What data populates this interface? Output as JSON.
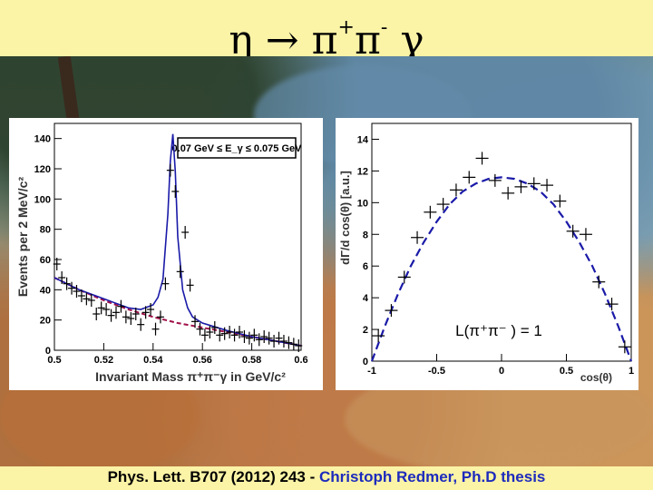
{
  "slide": {
    "title_eta": "η",
    "title_arrow": "→",
    "title_pi1": "π",
    "title_plus": "+",
    "title_pi2": "π",
    "title_minus": "-",
    "title_gamma": "γ",
    "footer_ref": "Phys. Lett.  B707 (2012)  243  -",
    "footer_author": "Christoph Redmer, Ph.D thesis"
  },
  "colors": {
    "title_band": "#fbf3a6",
    "fit_line": "#1a1aa8",
    "background_line": "#a0104a",
    "author_text": "#1d2bbd"
  },
  "chart_data": [
    {
      "type": "scatter",
      "ylabel": "Events per 2 MeV/c²",
      "xlabel": "Invariant Mass π⁺π⁻γ  in GeV/c²",
      "legend_box": "0.07 GeV ≤ E_γ ≤ 0.075 GeV",
      "legend_placement": "top-right",
      "xlim": [
        0.5,
        0.6
      ],
      "ylim": [
        0,
        150
      ],
      "x_ticks": [
        "0.5",
        "0.52",
        "0.54",
        "0.56",
        "0.58",
        "0.6"
      ],
      "y_ticks": [
        "0",
        "20",
        "40",
        "60",
        "80",
        "100",
        "120",
        "140"
      ],
      "series": [
        {
          "kind": "data_points",
          "x": [
            0.501,
            0.503,
            0.505,
            0.507,
            0.509,
            0.511,
            0.513,
            0.515,
            0.517,
            0.519,
            0.521,
            0.523,
            0.525,
            0.527,
            0.529,
            0.531,
            0.533,
            0.535,
            0.537,
            0.539,
            0.541,
            0.543,
            0.545,
            0.547,
            0.549,
            0.551,
            0.553,
            0.555,
            0.557,
            0.559,
            0.561,
            0.563,
            0.565,
            0.567,
            0.569,
            0.571,
            0.573,
            0.575,
            0.577,
            0.579,
            0.581,
            0.583,
            0.585,
            0.587,
            0.589,
            0.591,
            0.593,
            0.595,
            0.597,
            0.599
          ],
          "y": [
            57,
            48,
            44,
            41,
            39,
            36,
            34,
            33,
            24,
            28,
            27,
            23,
            25,
            29,
            22,
            21,
            24,
            17,
            25,
            27,
            14,
            22,
            44,
            119,
            105,
            52,
            78,
            43,
            19,
            14,
            10,
            12,
            15,
            10,
            11,
            12,
            10,
            12,
            9,
            8,
            10,
            7,
            9,
            8,
            6,
            8,
            6,
            5,
            4,
            3
          ]
        },
        {
          "kind": "signal_plus_background_fit",
          "x": [
            0.5,
            0.51,
            0.52,
            0.53,
            0.535,
            0.54,
            0.542,
            0.544,
            0.546,
            0.547,
            0.548,
            0.549,
            0.55,
            0.552,
            0.554,
            0.556,
            0.56,
            0.57,
            0.58,
            0.59,
            0.6
          ],
          "y": [
            48,
            40,
            34,
            28,
            27,
            30,
            35,
            47,
            90,
            125,
            143,
            118,
            75,
            40,
            28,
            22,
            18,
            13,
            9,
            6,
            3
          ]
        },
        {
          "kind": "background_fit",
          "x": [
            0.5,
            0.51,
            0.52,
            0.53,
            0.54,
            0.55,
            0.56,
            0.57,
            0.58,
            0.59,
            0.6
          ],
          "y": [
            48,
            40,
            33,
            27,
            22,
            18,
            15,
            12,
            9,
            6,
            3
          ]
        }
      ]
    },
    {
      "type": "scatter",
      "ylabel": "dΓ/d cos(θ)   [a.u.]",
      "xlabel": "cos(θ)",
      "annotation": "L(π⁺π⁻ ) = 1",
      "xlim": [
        -1,
        1
      ],
      "ylim": [
        0,
        15
      ],
      "x_ticks": [
        "-1",
        "-0.5",
        "0",
        "0.5",
        "1"
      ],
      "y_ticks": [
        "0",
        "2",
        "4",
        "6",
        "8",
        "10",
        "12",
        "14"
      ],
      "series": [
        {
          "kind": "data_points",
          "x": [
            -0.95,
            -0.85,
            -0.75,
            -0.65,
            -0.55,
            -0.45,
            -0.35,
            -0.25,
            -0.15,
            -0.05,
            0.05,
            0.15,
            0.25,
            0.35,
            0.45,
            0.55,
            0.65,
            0.75,
            0.85,
            0.95
          ],
          "y": [
            1.6,
            3.2,
            5.3,
            7.8,
            9.4,
            9.9,
            10.8,
            11.6,
            12.8,
            11.4,
            10.6,
            11.0,
            11.2,
            11.1,
            10.1,
            8.2,
            8.0,
            5.0,
            3.6,
            0.9
          ]
        },
        {
          "kind": "theory_curve",
          "x": [
            -1,
            -0.9,
            -0.8,
            -0.7,
            -0.6,
            -0.5,
            -0.4,
            -0.3,
            -0.2,
            -0.1,
            0,
            0.1,
            0.2,
            0.3,
            0.4,
            0.5,
            0.6,
            0.7,
            0.8,
            0.9,
            1
          ],
          "y": [
            0,
            2.2,
            4.2,
            6.0,
            7.5,
            8.8,
            9.9,
            10.7,
            11.2,
            11.5,
            11.6,
            11.5,
            11.2,
            10.7,
            9.9,
            8.8,
            7.5,
            6.0,
            4.2,
            2.2,
            0
          ]
        }
      ]
    }
  ]
}
